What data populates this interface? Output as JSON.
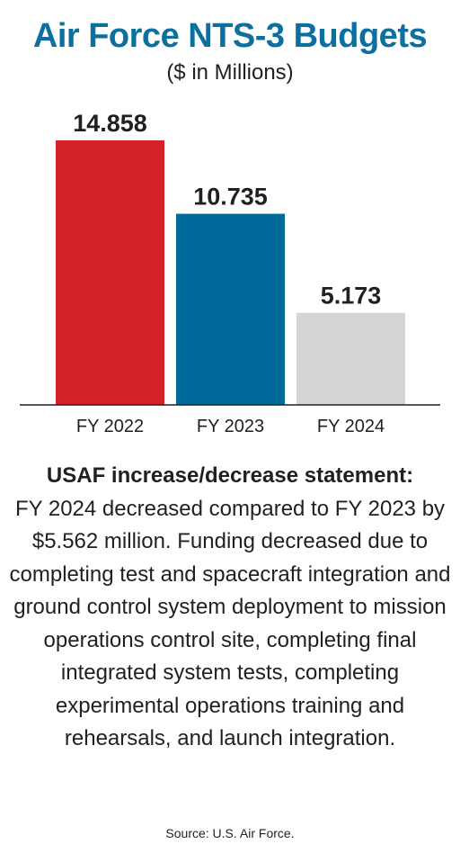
{
  "chart_data": {
    "type": "bar",
    "title": "Air Force NTS-3 Budgets",
    "subtitle": "($ in Millions)",
    "categories": [
      "FY 2022",
      "FY 2023",
      "FY 2024"
    ],
    "values": [
      14.858,
      10.735,
      5.173
    ],
    "value_labels": [
      "14.858",
      "10.735",
      "5.173"
    ],
    "colors": [
      "#d3222a",
      "#006a9a",
      "#d4d4d6"
    ],
    "xlabel": "",
    "ylabel": "",
    "ylim": [
      0,
      14.858
    ],
    "grid": false
  },
  "statement": {
    "heading": "USAF increase/decrease statement:",
    "body": "FY 2024 decreased compared to FY 2023 by $5.562 million. Funding decreased due to completing test and spacecraft integration and ground control system deployment to mission operations control site, completing final integrated system tests, completing experimental operations training and rehearsals, and launch integration."
  },
  "source": "Source: U.S. Air Force."
}
